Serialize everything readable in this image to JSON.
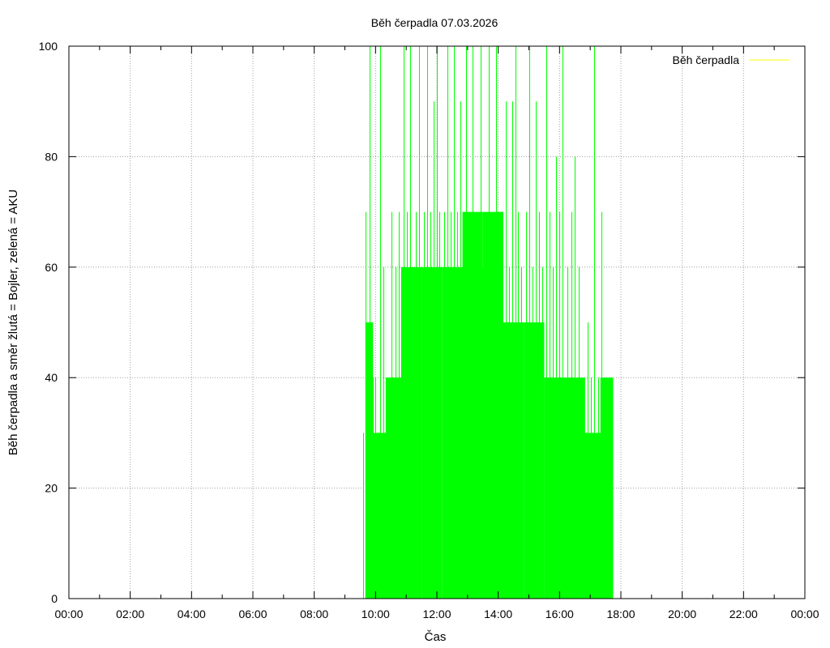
{
  "chart_data": {
    "type": "line",
    "title": "Běh čerpadla 07.03.2026",
    "xlabel": "Čas",
    "ylabel": "Běh čerpadla a směr žlutá = Bojler, zelená = AKU",
    "xlim": [
      "00:00",
      "24:00"
    ],
    "ylim": [
      0,
      100
    ],
    "x_tick_labels": [
      "00:00",
      "02:00",
      "04:00",
      "06:00",
      "08:00",
      "10:00",
      "12:00",
      "14:00",
      "16:00",
      "18:00",
      "20:00",
      "22:00",
      "00:00"
    ],
    "y_tick_labels": [
      "0",
      "20",
      "40",
      "60",
      "80",
      "100"
    ],
    "grid": true,
    "legend_position": "top-right",
    "colors": {
      "boiler": "#ffff00",
      "aku": "#00ff00"
    },
    "series": [
      {
        "name": "Běh čerpadla",
        "color": "#ffff00",
        "points": []
      },
      {
        "color": "#00ff00",
        "shape": "impulses",
        "segments": [
          {
            "start": "09:30",
            "end": "09:40",
            "peaks": [
              30
            ]
          },
          {
            "start": "09:40",
            "end": "09:55",
            "peaks": [
              70,
              40,
              30,
              50,
              100,
              30,
              50,
              40
            ]
          },
          {
            "start": "09:55",
            "end": "10:20",
            "peaks": [
              30,
              40,
              30,
              30,
              100,
              30,
              60,
              30
            ]
          },
          {
            "start": "10:20",
            "end": "10:50",
            "peaks": [
              40,
              40,
              40,
              70,
              40,
              40,
              60,
              40,
              70,
              40
            ]
          },
          {
            "start": "10:50",
            "end": "11:30",
            "peaks": [
              50,
              100,
              50,
              70,
              50,
              100,
              50,
              60,
              50,
              70,
              50,
              100,
              60
            ]
          },
          {
            "start": "11:30",
            "end": "12:10",
            "peaks": [
              60,
              70,
              60,
              100,
              60,
              70,
              60,
              90,
              60,
              100,
              60,
              70,
              60
            ]
          },
          {
            "start": "12:10",
            "end": "12:50",
            "peaks": [
              60,
              70,
              60,
              100,
              60,
              70,
              60,
              100,
              60,
              70,
              60,
              90,
              60
            ]
          },
          {
            "start": "12:50",
            "end": "13:30",
            "peaks": [
              60,
              70,
              100,
              60,
              70,
              60,
              100,
              70,
              60,
              70,
              60,
              100,
              60
            ]
          },
          {
            "start": "13:30",
            "end": "14:10",
            "peaks": [
              70,
              60,
              70,
              100,
              70,
              60,
              70,
              60,
              100,
              70,
              60,
              70,
              60
            ]
          },
          {
            "start": "14:10",
            "end": "14:50",
            "peaks": [
              50,
              90,
              50,
              60,
              50,
              90,
              50,
              100,
              50,
              70,
              50,
              60,
              50
            ]
          },
          {
            "start": "14:50",
            "end": "15:30",
            "peaks": [
              50,
              70,
              50,
              100,
              50,
              60,
              50,
              90,
              40,
              70,
              40,
              60,
              40
            ]
          },
          {
            "start": "15:30",
            "end": "16:10",
            "peaks": [
              40,
              100,
              40,
              70,
              40,
              60,
              40,
              80,
              40,
              70,
              40,
              100,
              40
            ]
          },
          {
            "start": "16:10",
            "end": "16:50",
            "peaks": [
              40,
              60,
              40,
              70,
              40,
              80,
              30,
              60,
              30,
              40,
              30
            ]
          },
          {
            "start": "16:50",
            "end": "17:20",
            "peaks": [
              30,
              50,
              30,
              40,
              30,
              100,
              30,
              40,
              30
            ]
          },
          {
            "start": "17:20",
            "end": "17:45",
            "peaks": [
              70,
              30,
              40,
              30,
              30,
              40
            ]
          }
        ]
      }
    ]
  }
}
